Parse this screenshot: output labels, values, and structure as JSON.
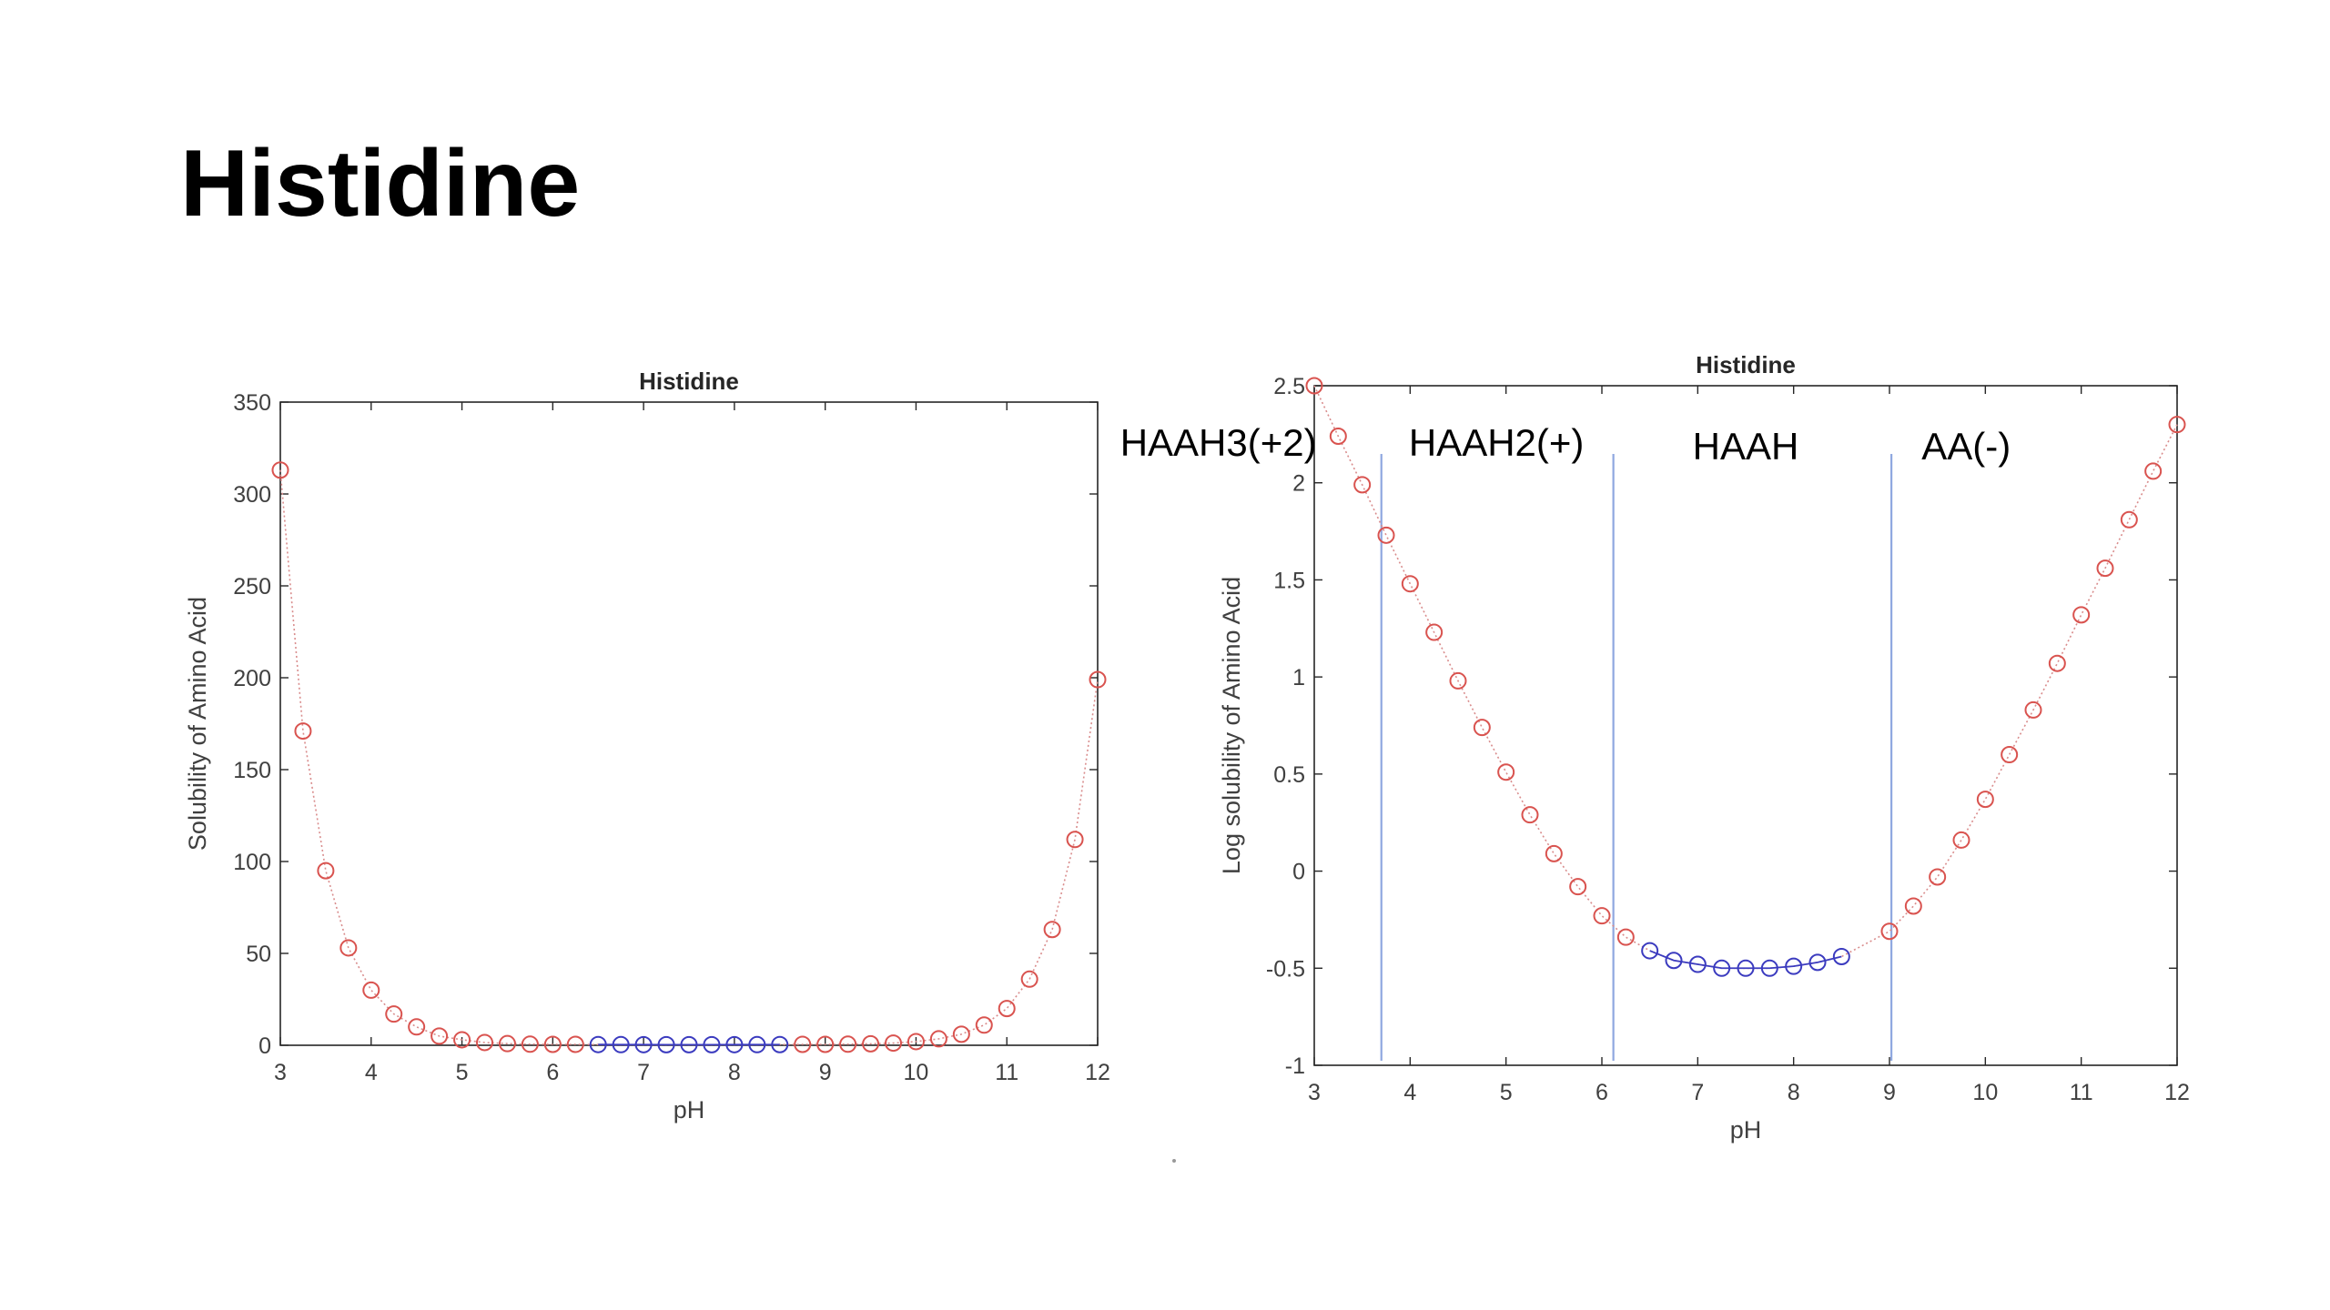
{
  "slide": {
    "title": "Histidine"
  },
  "chart_data": [
    {
      "type": "scatter",
      "title": "Histidine",
      "xlabel": "pH",
      "ylabel": "Solubility of Amino Acid",
      "xlim": [
        3,
        12
      ],
      "ylim": [
        0,
        350
      ],
      "xticks": [
        3,
        4,
        5,
        6,
        7,
        8,
        9,
        10,
        11,
        12
      ],
      "yticks": [
        0,
        50,
        100,
        150,
        200,
        250,
        300,
        350
      ],
      "grid": false,
      "marker": "circle-open",
      "connector": "dotted",
      "colors": {
        "red": "#d9534f",
        "blue": "#3b3bbf",
        "connector": "#d98c8c"
      },
      "series": [
        {
          "color": "red",
          "x": [
            3.0,
            3.25,
            3.5,
            3.75,
            4.0,
            4.25,
            4.5,
            4.75,
            5.0,
            5.25,
            5.5,
            5.75,
            6.0,
            6.25,
            8.75,
            9.0,
            9.25,
            9.5,
            9.75,
            10.0,
            10.25,
            10.5,
            10.75,
            11.0,
            11.25,
            11.5,
            11.75,
            12.0
          ],
          "y": [
            313,
            171,
            95,
            53,
            30,
            17,
            10,
            5,
            3,
            1.5,
            0.9,
            0.6,
            0.5,
            0.5,
            0.5,
            0.5,
            0.6,
            0.8,
            1.2,
            2,
            3.5,
            6,
            11,
            20,
            36,
            63,
            112,
            199
          ]
        },
        {
          "color": "blue",
          "x": [
            6.5,
            6.75,
            7.0,
            7.25,
            7.5,
            7.75,
            8.0,
            8.25,
            8.5
          ],
          "y": [
            0.4,
            0.35,
            0.33,
            0.32,
            0.32,
            0.32,
            0.33,
            0.35,
            0.38
          ]
        }
      ]
    },
    {
      "type": "scatter",
      "title": "Histidine",
      "xlabel": "pH",
      "ylabel": "Log solubility of Amino Acid",
      "xlim": [
        3,
        12
      ],
      "ylim": [
        -1,
        2.5
      ],
      "xticks": [
        3,
        4,
        5,
        6,
        7,
        8,
        9,
        10,
        11,
        12
      ],
      "yticks": [
        -1,
        -0.5,
        0,
        0.5,
        1,
        1.5,
        2,
        2.5
      ],
      "grid": false,
      "marker": "circle-open",
      "connector": "dotted",
      "colors": {
        "red": "#d9534f",
        "blue": "#3b3bbf",
        "connector": "#d98c8c",
        "divider": "#8fa8e0"
      },
      "series": [
        {
          "color": "red",
          "x": [
            3.0,
            3.25,
            3.5,
            3.75,
            4.0,
            4.25,
            4.5,
            4.75,
            5.0,
            5.25,
            5.5,
            5.75,
            6.0,
            6.25,
            9.0,
            9.25,
            9.5,
            9.75,
            10.0,
            10.25,
            10.5,
            10.75,
            11.0,
            11.25,
            11.5,
            11.75,
            12.0
          ],
          "y": [
            2.5,
            2.24,
            1.99,
            1.73,
            1.48,
            1.23,
            0.98,
            0.74,
            0.51,
            0.29,
            0.09,
            -0.08,
            -0.23,
            -0.34,
            -0.31,
            -0.18,
            -0.03,
            0.16,
            0.37,
            0.6,
            0.83,
            1.07,
            1.32,
            1.56,
            1.81,
            2.06,
            2.3
          ]
        },
        {
          "color": "blue",
          "x": [
            6.5,
            6.75,
            7.0,
            7.25,
            7.5,
            7.75,
            8.0,
            8.25,
            8.5
          ],
          "y": [
            -0.41,
            -0.46,
            -0.48,
            -0.5,
            -0.5,
            -0.5,
            -0.49,
            -0.47,
            -0.44
          ]
        }
      ],
      "region_dividers": [
        3.7,
        6.12,
        9.02
      ],
      "annotations": [
        {
          "text": "HAAH3(+2)",
          "x": 2.0,
          "y": 2.14
        },
        {
          "text": "HAAH2(+)",
          "x": 4.9,
          "y": 2.14
        },
        {
          "text": "HAAH",
          "x": 7.5,
          "y": 2.12
        },
        {
          "text": "AA(-)",
          "x": 9.8,
          "y": 2.12
        }
      ]
    }
  ]
}
